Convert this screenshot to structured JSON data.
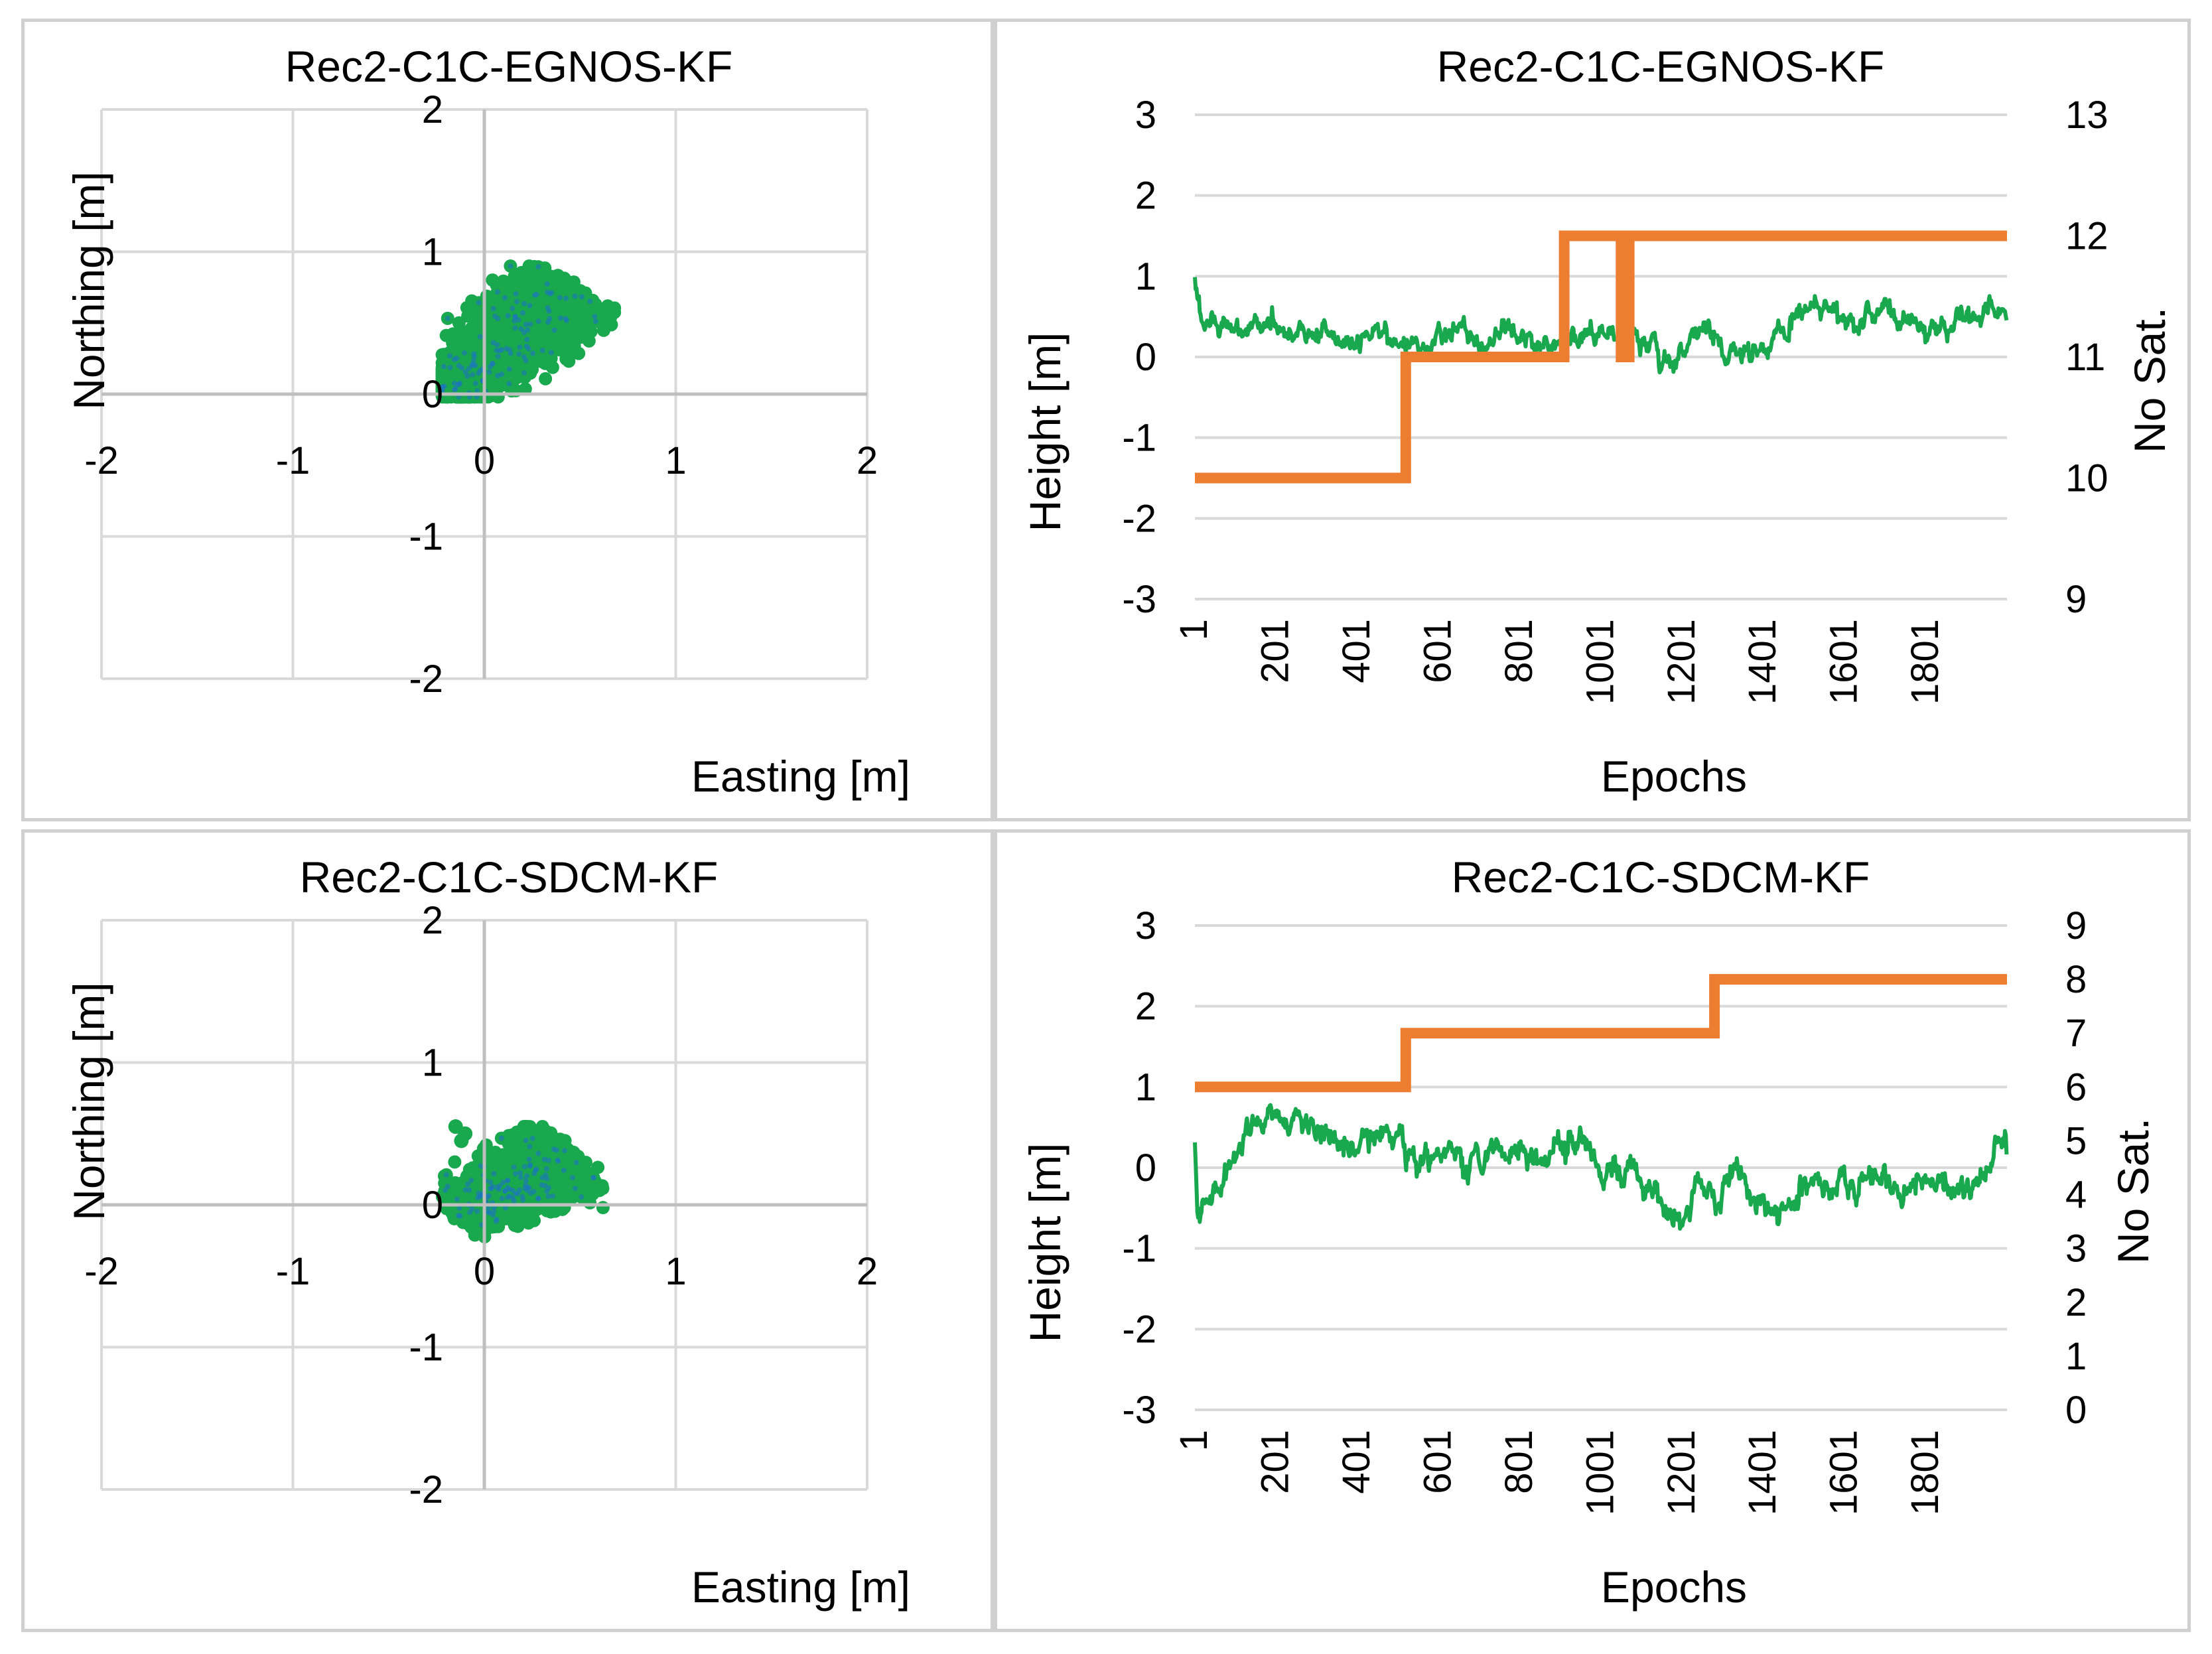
{
  "colors": {
    "scatter_fill": "#19a84e",
    "scatter_core": "#1c74bf",
    "height_line": "#1aa84e",
    "sat_line": "#ed7d31",
    "grid": "#d9d9d9",
    "panel_border": "#d0d0d0"
  },
  "chart_data": [
    {
      "id": "egnos-scatter",
      "type": "scatter",
      "title": "Rec2-C1C-EGNOS-KF",
      "xlabel": "Easting [m]",
      "ylabel": "Northing [m]",
      "xlim": [
        -2,
        2
      ],
      "ylim": [
        -2,
        2
      ],
      "x_ticks": [
        "-2",
        "-1",
        "0",
        "1",
        "2"
      ],
      "y_ticks": [
        "2",
        "1",
        "0",
        "-1",
        "-2"
      ],
      "cloud": {
        "n_points": 2000,
        "start": [
          -0.2,
          0.0
        ],
        "end": [
          0.45,
          0.75
        ],
        "spread": 0.12,
        "x_range": [
          -0.22,
          0.68
        ],
        "y_range": [
          -0.02,
          0.9
        ],
        "note": "dense elongated cluster of position samples"
      }
    },
    {
      "id": "egnos-height",
      "type": "line",
      "title": "Rec2-C1C-EGNOS-KF",
      "xlabel": "Epochs",
      "ylabel": "Height [m]",
      "y2label": "No Sat.",
      "ylim": [
        -3,
        3
      ],
      "y2lim": [
        9,
        13
      ],
      "xlim": [
        1,
        2000
      ],
      "x_ticks": [
        "1",
        "201",
        "401",
        "601",
        "801",
        "1001",
        "1201",
        "1401",
        "1601",
        "1801"
      ],
      "y_ticks": [
        "3",
        "2",
        "1",
        "0",
        "-1",
        "-2",
        "-3"
      ],
      "y2_ticks": [
        "13",
        "12",
        "11",
        "10",
        "9"
      ],
      "series": [
        {
          "name": "Height",
          "axis": "left",
          "anchors": [
            [
              1,
              1.0
            ],
            [
              20,
              0.45
            ],
            [
              100,
              0.3
            ],
            [
              200,
              0.4
            ],
            [
              300,
              0.35
            ],
            [
              420,
              0.2
            ],
            [
              500,
              0.25
            ],
            [
              560,
              0.1
            ],
            [
              620,
              0.3
            ],
            [
              700,
              0.25
            ],
            [
              800,
              0.3
            ],
            [
              880,
              0.2
            ],
            [
              950,
              0.25
            ],
            [
              1050,
              0.3
            ],
            [
              1130,
              0.2
            ],
            [
              1180,
              -0.1
            ],
            [
              1260,
              0.3
            ],
            [
              1320,
              0.05
            ],
            [
              1420,
              0.15
            ],
            [
              1520,
              0.75
            ],
            [
              1620,
              0.45
            ],
            [
              1700,
              0.55
            ],
            [
              1800,
              0.25
            ],
            [
              1900,
              0.45
            ],
            [
              1990,
              0.6
            ]
          ],
          "noise": 0.08
        },
        {
          "name": "No Sat.",
          "axis": "right",
          "steps": [
            [
              1,
              10
            ],
            [
              520,
              10
            ],
            [
              520,
              11
            ],
            [
              910,
              11
            ],
            [
              910,
              12
            ],
            [
              1050,
              12
            ],
            [
              1050,
              11
            ],
            [
              1070,
              11
            ],
            [
              1070,
              12
            ],
            [
              2000,
              12
            ]
          ]
        }
      ]
    },
    {
      "id": "sdcm-scatter",
      "type": "scatter",
      "title": "Rec2-C1C-SDCM-KF",
      "xlabel": "Easting [m]",
      "ylabel": "Northing [m]",
      "xlim": [
        -2,
        2
      ],
      "ylim": [
        -2,
        2
      ],
      "x_ticks": [
        "-2",
        "-1",
        "0",
        "1",
        "2"
      ],
      "y_ticks": [
        "2",
        "1",
        "0",
        "-1",
        "-2"
      ],
      "cloud": {
        "n_points": 2000,
        "start": [
          -0.12,
          -0.05
        ],
        "end": [
          0.45,
          0.35
        ],
        "spread": 0.12,
        "x_range": [
          -0.25,
          0.62
        ],
        "y_range": [
          -0.25,
          0.55
        ],
        "note": "dense elongated cluster of position samples"
      },
      "outliers": [
        [
          -0.15,
          0.55
        ],
        [
          -0.1,
          0.5
        ],
        [
          -0.12,
          0.45
        ]
      ]
    },
    {
      "id": "sdcm-height",
      "type": "line",
      "title": "Rec2-C1C-SDCM-KF",
      "xlabel": "Epochs",
      "ylabel": "Height [m]",
      "y2label": "No Sat.",
      "ylim": [
        -3,
        3
      ],
      "y2lim": [
        0,
        9
      ],
      "xlim": [
        1,
        2000
      ],
      "x_ticks": [
        "1",
        "201",
        "401",
        "601",
        "801",
        "1001",
        "1201",
        "1401",
        "1601",
        "1801"
      ],
      "y_ticks": [
        "3",
        "2",
        "1",
        "0",
        "-1",
        "-2",
        "-3"
      ],
      "y2_ticks": [
        "9",
        "8",
        "7",
        "6",
        "5",
        "4",
        "3",
        "2",
        "1",
        "0"
      ],
      "series": [
        {
          "name": "Height",
          "axis": "left",
          "anchors": [
            [
              1,
              0.3
            ],
            [
              8,
              -0.55
            ],
            [
              60,
              -0.2
            ],
            [
              120,
              0.4
            ],
            [
              200,
              0.65
            ],
            [
              280,
              0.6
            ],
            [
              360,
              0.2
            ],
            [
              420,
              0.4
            ],
            [
              480,
              0.45
            ],
            [
              540,
              0.05
            ],
            [
              620,
              0.25
            ],
            [
              700,
              -0.05
            ],
            [
              780,
              0.3
            ],
            [
              850,
              0.05
            ],
            [
              920,
              0.4
            ],
            [
              1000,
              0.0
            ],
            [
              1080,
              -0.1
            ],
            [
              1130,
              -0.3
            ],
            [
              1200,
              -0.8
            ],
            [
              1240,
              -0.1
            ],
            [
              1290,
              -0.7
            ],
            [
              1330,
              0.1
            ],
            [
              1380,
              -0.4
            ],
            [
              1440,
              -0.45
            ],
            [
              1520,
              -0.2
            ],
            [
              1600,
              -0.25
            ],
            [
              1700,
              -0.15
            ],
            [
              1800,
              -0.3
            ],
            [
              1900,
              -0.15
            ],
            [
              1960,
              0.05
            ],
            [
              1990,
              0.55
            ],
            [
              2000,
              0.3
            ]
          ],
          "noise": 0.1
        },
        {
          "name": "No Sat.",
          "axis": "right",
          "steps": [
            [
              1,
              6
            ],
            [
              520,
              6
            ],
            [
              520,
              7
            ],
            [
              1280,
              7
            ],
            [
              1280,
              8
            ],
            [
              2000,
              8
            ]
          ]
        }
      ]
    }
  ]
}
